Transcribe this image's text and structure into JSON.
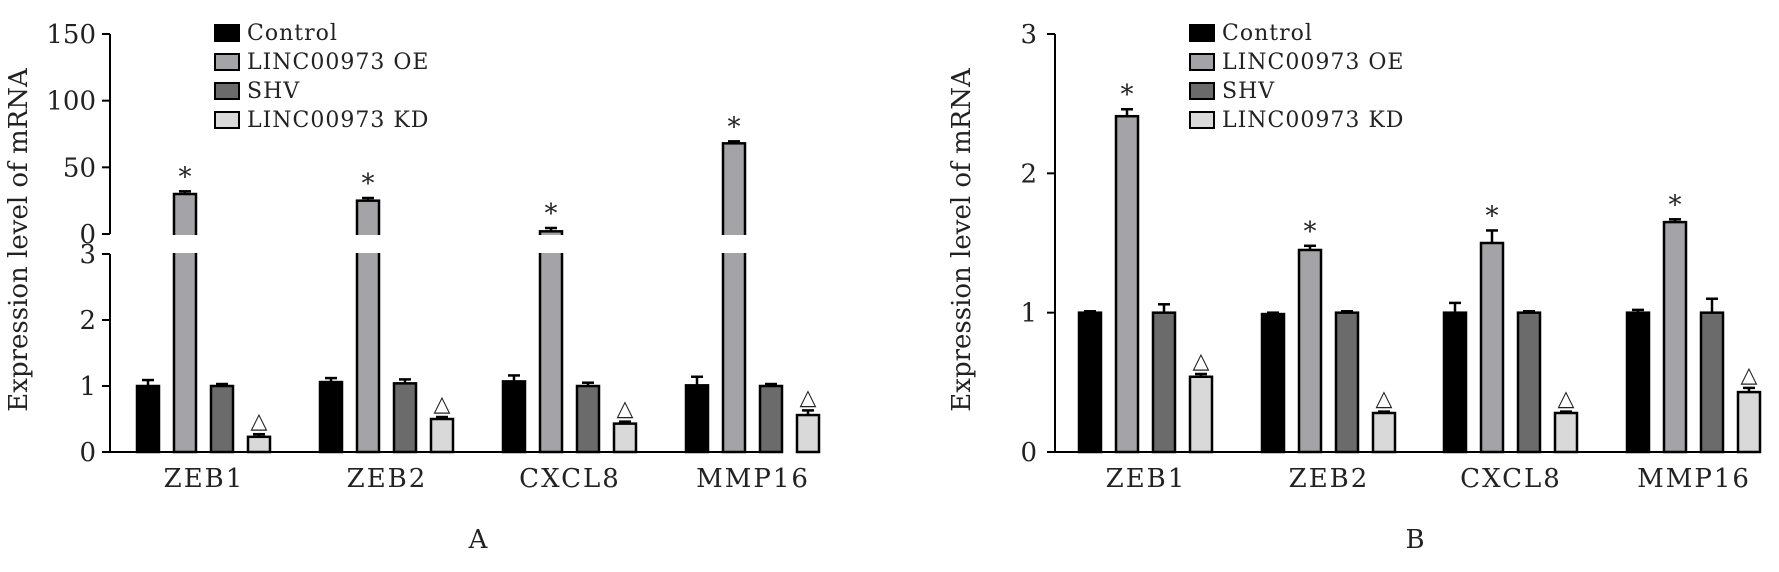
{
  "chart_data": [
    {
      "type": "bar",
      "panel_label": "A",
      "ylabel": "Expression level of mRNA",
      "categories": [
        "ZEB1",
        "ZEB2",
        "CXCL8",
        "MMP16"
      ],
      "y_axis": "broken",
      "lower_segment": {
        "ylim": [
          0,
          3
        ],
        "ticks": [
          0,
          1,
          2,
          3
        ]
      },
      "upper_segment": {
        "ylim": [
          0,
          150
        ],
        "ticks": [
          0,
          50,
          100,
          150
        ]
      },
      "series": [
        {
          "name": "Control",
          "color": "#000000",
          "values": [
            1.0,
            1.06,
            1.07,
            1.01
          ],
          "errors": [
            0.09,
            0.06,
            0.09,
            0.13
          ]
        },
        {
          "name": "LINC00973 OE",
          "color": "#a4a4a8",
          "values": [
            30.0,
            25.0,
            2.0,
            68.0
          ],
          "errors": [
            2.0,
            2.0,
            2.5,
            1.5
          ]
        },
        {
          "name": "SHV",
          "color": "#6b6b6b",
          "values": [
            1.0,
            1.04,
            1.0,
            1.0
          ],
          "errors": [
            0.03,
            0.06,
            0.05,
            0.03
          ]
        },
        {
          "name": "LINC00973 KD",
          "color": "#d9d9d9",
          "values": [
            0.23,
            0.5,
            0.43,
            0.56
          ],
          "errors": [
            0.04,
            0.03,
            0.03,
            0.07
          ]
        }
      ],
      "annotations": {
        "LINC00973 OE": [
          "*",
          "*",
          "*",
          "*"
        ],
        "LINC00973 KD": [
          "△",
          "△",
          "△",
          "△"
        ]
      }
    },
    {
      "type": "bar",
      "panel_label": "B",
      "ylabel": "Expression level of mRNA",
      "categories": [
        "ZEB1",
        "ZEB2",
        "CXCL8",
        "MMP16"
      ],
      "ylim": [
        0,
        3
      ],
      "ticks": [
        0,
        1,
        2,
        3
      ],
      "series": [
        {
          "name": "Control",
          "color": "#000000",
          "values": [
            1.0,
            0.99,
            1.0,
            1.0
          ],
          "errors": [
            0.01,
            0.01,
            0.07,
            0.02
          ]
        },
        {
          "name": "LINC00973 OE",
          "color": "#a4a4a8",
          "values": [
            2.41,
            1.45,
            1.5,
            1.65
          ],
          "errors": [
            0.05,
            0.03,
            0.09,
            0.02
          ]
        },
        {
          "name": "SHV",
          "color": "#6b6b6b",
          "values": [
            1.0,
            1.0,
            1.0,
            1.0
          ],
          "errors": [
            0.06,
            0.01,
            0.01,
            0.1
          ]
        },
        {
          "name": "LINC00973 KD",
          "color": "#d9d9d9",
          "values": [
            0.54,
            0.28,
            0.28,
            0.43
          ],
          "errors": [
            0.02,
            0.01,
            0.01,
            0.03
          ]
        }
      ],
      "annotations": {
        "LINC00973 OE": [
          "*",
          "*",
          "*",
          "*"
        ],
        "LINC00973 KD": [
          "△",
          "△",
          "△",
          "△"
        ]
      }
    }
  ]
}
